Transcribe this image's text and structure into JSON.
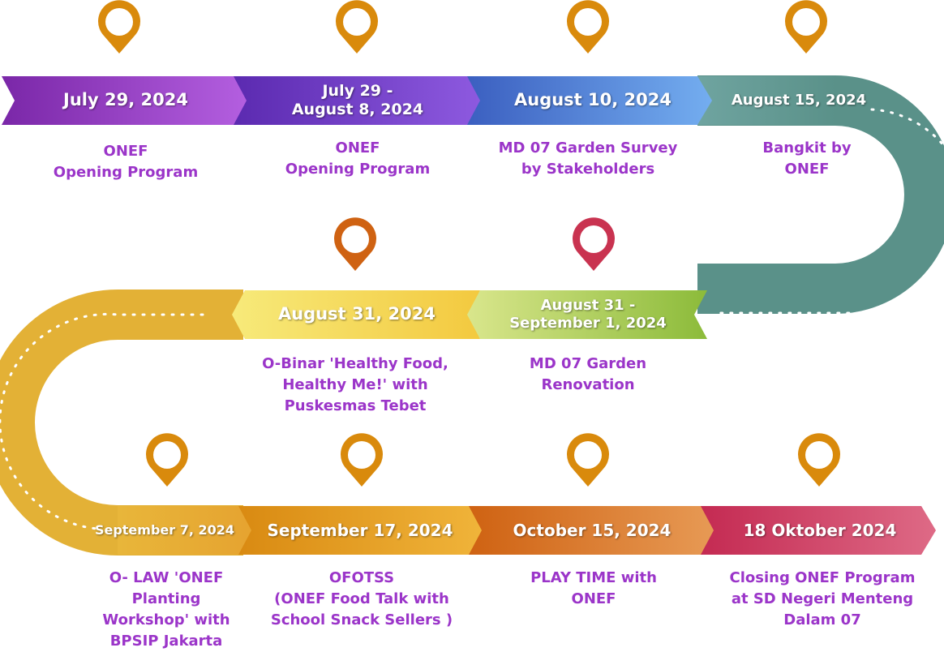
{
  "colors": {
    "purple_text": "#9b35c9",
    "teal": "#5a9189",
    "gold": "#e3b136",
    "orange_pin": "#d98a0c",
    "red_pin": "#c93350"
  },
  "events": [
    {
      "date": [
        "July 29, 2024"
      ],
      "desc": [
        "ONEF",
        "Opening Program"
      ],
      "pin": "location-pin-icon"
    },
    {
      "date": [
        "July 29 -",
        "August 8, 2024"
      ],
      "desc": [
        "ONEF",
        "Opening Program"
      ],
      "pin": "location-pin-icon"
    },
    {
      "date": [
        "August 10, 2024"
      ],
      "desc": [
        "MD 07 Garden Survey",
        "by Stakeholders"
      ],
      "pin": "location-pin-icon"
    },
    {
      "date": [
        "August 15, 2024"
      ],
      "desc": [
        "Bangkit by",
        "ONEF"
      ],
      "pin": "location-pin-icon"
    },
    {
      "date": [
        "August 31 -",
        "September 1, 2024"
      ],
      "desc": [
        "MD 07 Garden",
        "Renovation"
      ],
      "pin": "location-pin-icon"
    },
    {
      "date": [
        "August 31, 2024"
      ],
      "desc": [
        "O-Binar 'Healthy Food,",
        "Healthy Me!'  with",
        "Puskesmas Tebet"
      ],
      "pin": "location-pin-icon"
    },
    {
      "date": [
        "September 7, 2024"
      ],
      "desc": [
        "O- LAW 'ONEF",
        "Planting",
        "Workshop' with",
        "BPSIP Jakarta"
      ],
      "pin": "location-pin-icon"
    },
    {
      "date": [
        "September 17, 2024"
      ],
      "desc": [
        "OFOTSS",
        "(ONEF Food Talk with",
        "School Snack Sellers )"
      ],
      "pin": "location-pin-icon"
    },
    {
      "date": [
        "October 15, 2024"
      ],
      "desc": [
        "PLAY TIME with",
        "ONEF"
      ],
      "pin": "location-pin-icon"
    },
    {
      "date": [
        "18 Oktober 2024"
      ],
      "desc": [
        "Closing ONEF Program",
        "at SD Negeri Menteng",
        "Dalam 07"
      ],
      "pin": "location-pin-icon"
    }
  ]
}
